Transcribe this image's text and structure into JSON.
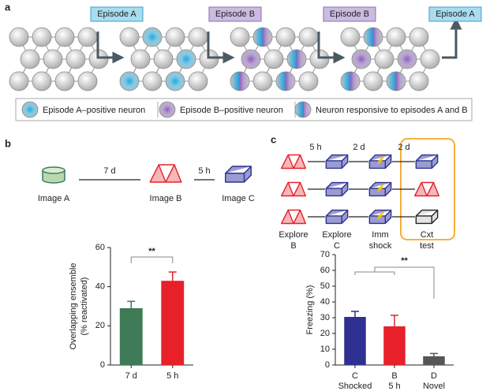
{
  "panel_a": {
    "label": "a",
    "episodes": [
      "Episode A",
      "Episode B",
      "Episode B",
      "Episode A"
    ],
    "legend": [
      "Episode A–positive neuron",
      "Episode B–positive neuron",
      "Neuron responsive to episodes A and B"
    ]
  },
  "panel_b": {
    "label": "b",
    "images": [
      "Image A",
      "Image B",
      "Image C"
    ],
    "intervals": [
      "7 d",
      "5 h"
    ]
  },
  "panel_c": {
    "label": "c",
    "intervals": [
      "5 h",
      "2 d",
      "2 d"
    ],
    "stages": [
      [
        "Explore",
        "B"
      ],
      [
        "Explore",
        "C"
      ],
      [
        "Imm",
        "shock"
      ],
      [
        "Cxt",
        "test"
      ]
    ]
  },
  "chart_data": [
    {
      "type": "bar",
      "categories": [
        "7 d",
        "5 h"
      ],
      "values": [
        29,
        43
      ],
      "errors": [
        3.5,
        4.5
      ],
      "colors": [
        "#3f7a57",
        "#e8202a"
      ],
      "ylabel": [
        "Overlapping ensemble",
        "(% reactivated)"
      ],
      "ylim": [
        0,
        60
      ],
      "yticks": [
        0,
        20,
        40,
        60
      ],
      "significance": "**"
    },
    {
      "type": "bar",
      "categories": [
        "C",
        "B",
        "D"
      ],
      "subcategories": [
        "Shocked",
        "5 h",
        "Novel"
      ],
      "values": [
        30.5,
        24.5,
        5.5
      ],
      "errors": [
        3.5,
        7,
        1.8
      ],
      "colors": [
        "#2e3192",
        "#e8202a",
        "#555555"
      ],
      "ylabel": [
        "Freezing (%)"
      ],
      "ylim": [
        0,
        70
      ],
      "yticks": [
        0,
        10,
        20,
        30,
        40,
        50,
        60,
        70
      ],
      "significance": "**"
    }
  ]
}
